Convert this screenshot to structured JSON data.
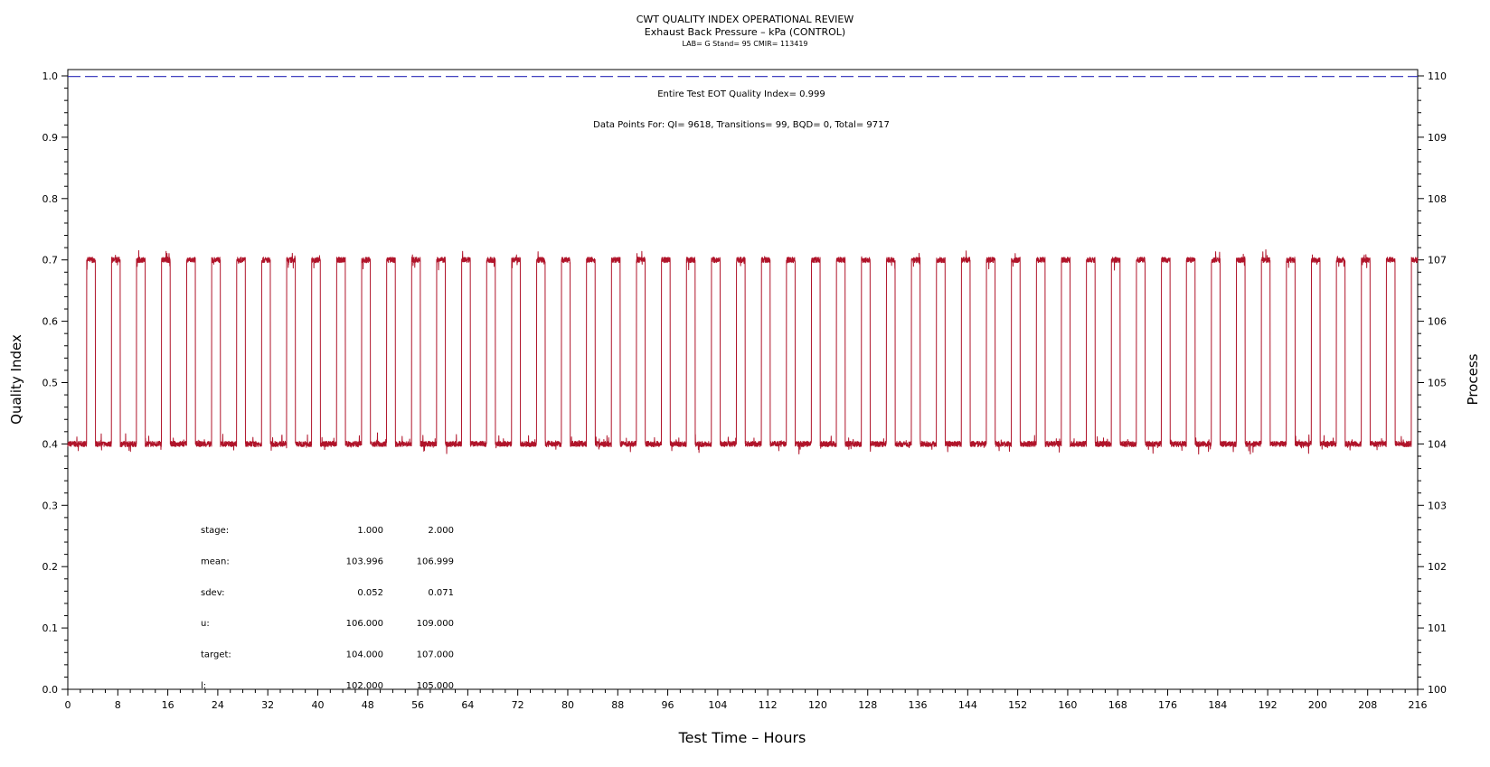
{
  "header": {
    "title": "CWT QUALITY INDEX OPERATIONAL REVIEW",
    "subtitle": "Exhaust Back Pressure – kPa (CONTROL)",
    "info": "LAB= G Stand= 95 CMIR= 113419"
  },
  "annotations": {
    "qi_text": "Entire Test EOT Quality Index=   0.999",
    "points_text": "Data Points For: QI=  9618, Transitions=    99, BQD=     0, Total=  9717"
  },
  "stats": {
    "rows": [
      {
        "label": "stage:",
        "v1": "1.000",
        "v2": "2.000"
      },
      {
        "label": "mean:",
        "v1": "103.996",
        "v2": "106.999"
      },
      {
        "label": "sdev:",
        "v1": "0.052",
        "v2": "0.071"
      },
      {
        "label": "u:",
        "v1": "106.000",
        "v2": "109.000"
      },
      {
        "label": "target:",
        "v1": "104.000",
        "v2": "107.000"
      },
      {
        "label": "l:",
        "v1": "102.000",
        "v2": "105.000"
      }
    ]
  },
  "colors": {
    "process_line": "#b0142a",
    "qi_line": "#2a2ab8",
    "axis": "#000000"
  },
  "chart_data": {
    "type": "line",
    "title": "CWT QUALITY INDEX OPERATIONAL REVIEW",
    "xlabel": "Test Time – Hours",
    "ylabel": "Quality Index",
    "y2label": "Process",
    "xlim": [
      0,
      216
    ],
    "ylim": [
      0.0,
      1.0
    ],
    "y2lim": [
      100,
      110
    ],
    "x_ticks": [
      0,
      8,
      16,
      24,
      32,
      40,
      48,
      56,
      64,
      72,
      80,
      88,
      96,
      104,
      112,
      120,
      128,
      136,
      144,
      152,
      160,
      168,
      176,
      184,
      192,
      200,
      208,
      216
    ],
    "y_ticks": [
      "0.0",
      "0.1",
      "0.2",
      "0.3",
      "0.4",
      "0.5",
      "0.6",
      "0.7",
      "0.8",
      "0.9",
      "1.0"
    ],
    "y2_ticks": [
      "100",
      "101",
      "102",
      "103",
      "104",
      "105",
      "106",
      "107",
      "108",
      "109",
      "110"
    ],
    "grid": false,
    "series": [
      {
        "role": "quality_index",
        "axis": "left",
        "style": "dashed",
        "x": [
          0,
          216
        ],
        "y": [
          0.999,
          0.999
        ]
      },
      {
        "role": "process",
        "axis": "right",
        "style": "solid",
        "cycle_hours": 4,
        "low_value": 104.0,
        "high_value": 107.0,
        "first_high_start": 3.0,
        "high_duration": 1.4,
        "end_hour": 216
      }
    ]
  }
}
